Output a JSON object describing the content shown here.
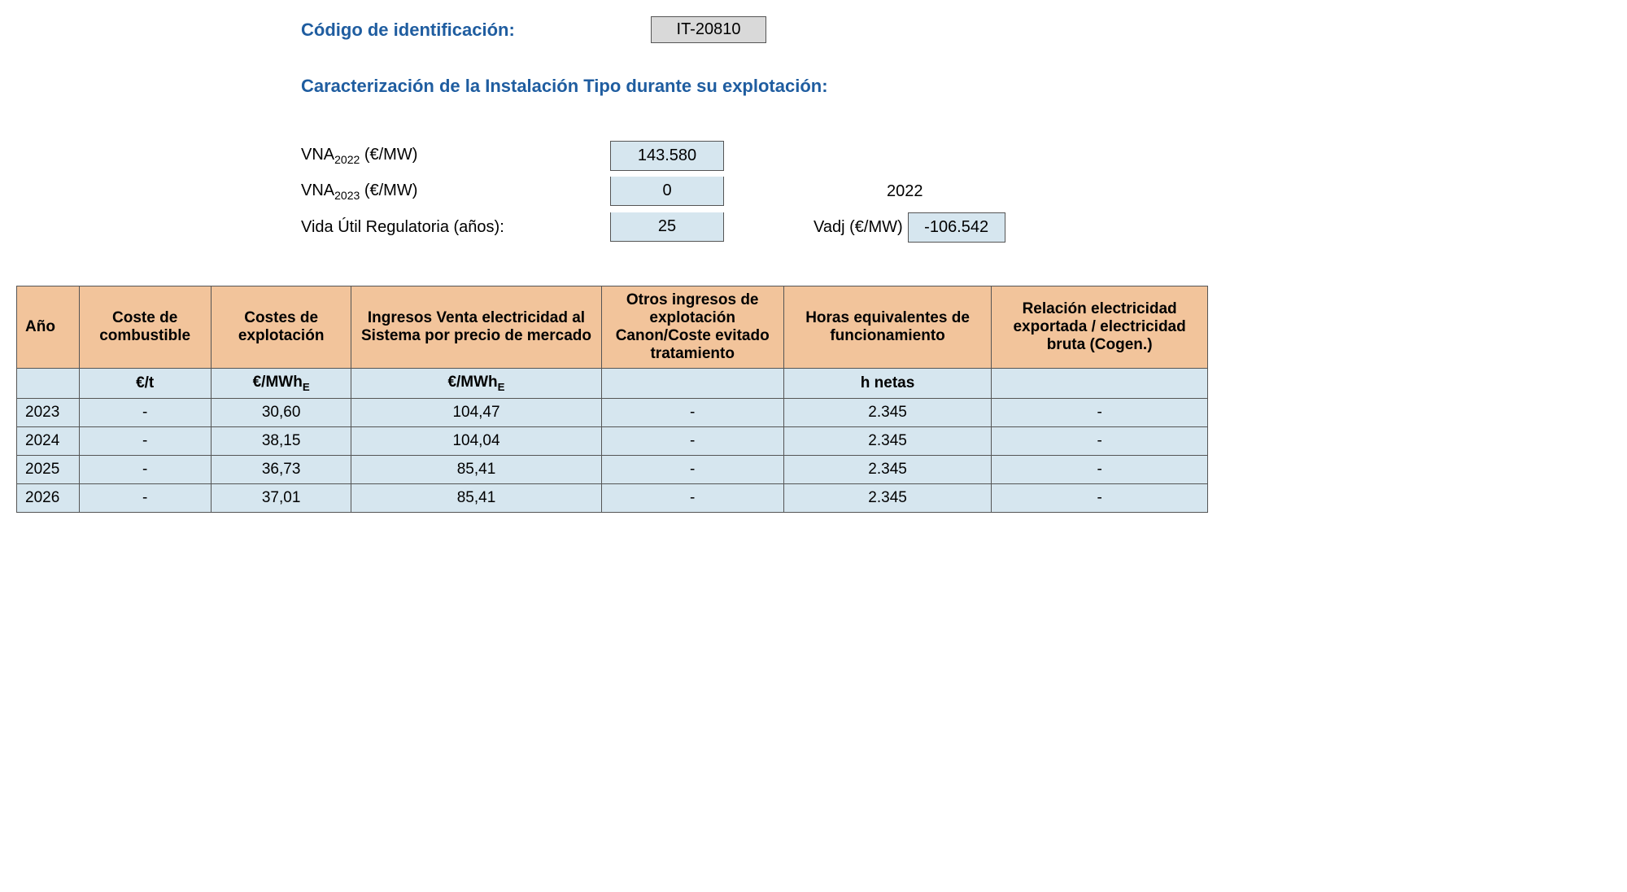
{
  "header": {
    "id_label": "Código de identificación:",
    "id_value": "IT-20810",
    "section_title": "Caracterización de la Instalación Tipo durante su explotación:"
  },
  "params": {
    "vna2022_label_prefix": "VNA",
    "vna2022_sub": "2022",
    "vna_unit": " (€/MW)",
    "vna2022_value": "143.580",
    "vna2023_sub": "2023",
    "vna2023_value": "0",
    "year_ref": "2022",
    "vida_label": "Vida Útil Regulatoria (años):",
    "vida_value": "25",
    "vadj_label": "Vadj (€/MW)",
    "vadj_value": "-106.542"
  },
  "table": {
    "columns": [
      "Año",
      "Coste de combustible",
      "Costes de explotación",
      "Ingresos Venta electricidad al Sistema por precio de mercado",
      "Otros ingresos de explotación Canon/Coste evitado tratamiento",
      "Horas equivalentes de funcionamiento",
      "Relación electricidad exportada / electricidad bruta (Cogen.)"
    ],
    "units": [
      "",
      "€/t",
      "€/MWhE",
      "€/MWhE",
      "",
      "h netas",
      ""
    ],
    "rows": [
      {
        "year": "2023",
        "c1": "-",
        "c2": "30,60",
        "c3": "104,47",
        "c4": "-",
        "c5": "2.345",
        "c6": "-"
      },
      {
        "year": "2024",
        "c1": "-",
        "c2": "38,15",
        "c3": "104,04",
        "c4": "-",
        "c5": "2.345",
        "c6": "-"
      },
      {
        "year": "2025",
        "c1": "-",
        "c2": "36,73",
        "c3": "85,41",
        "c4": "-",
        "c5": "2.345",
        "c6": "-"
      },
      {
        "year": "2026",
        "c1": "-",
        "c2": "37,01",
        "c3": "85,41",
        "c4": "-",
        "c5": "2.345",
        "c6": "-"
      }
    ],
    "colors": {
      "header_bg": "#f2c49b",
      "cell_bg": "#d6e6ef",
      "border": "#555555",
      "title_color": "#1f5da0",
      "id_box_bg": "#d9d9d9"
    }
  }
}
